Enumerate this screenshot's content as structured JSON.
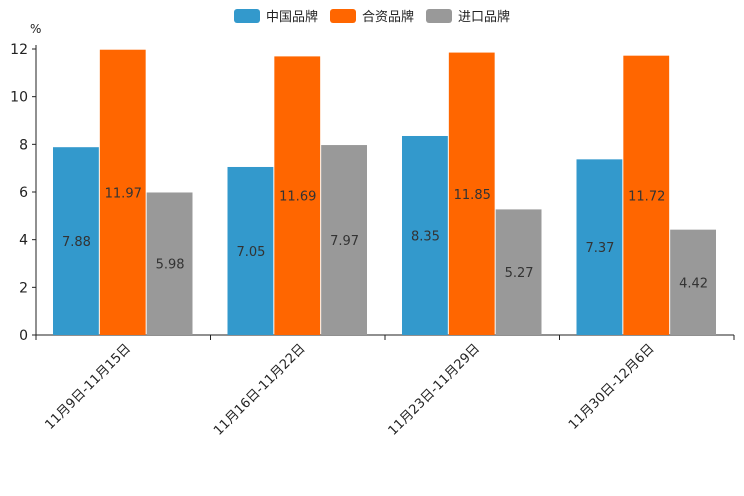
{
  "chart_data": {
    "type": "bar",
    "title": "",
    "xlabel": "",
    "ylabel": "%",
    "ylim": [
      0,
      12
    ],
    "yticks": [
      0,
      2,
      4,
      6,
      8,
      10,
      12
    ],
    "categories": [
      "11月9日-11月15日",
      "11月16日-11月22日",
      "11月23日-11月29日",
      "11月30日-12月6日"
    ],
    "series": [
      {
        "name": "中国品牌",
        "color": "#3399cc",
        "values": [
          7.88,
          7.05,
          8.35,
          7.37
        ],
        "labels": [
          "7.88",
          "7.05",
          "8.35",
          "7.37"
        ]
      },
      {
        "name": "合资品牌",
        "color": "#ff6600",
        "values": [
          11.97,
          11.69,
          11.85,
          11.72
        ],
        "labels": [
          "11.97",
          "11.69",
          "11.85",
          "11.72"
        ]
      },
      {
        "name": "进口品牌",
        "color": "#999999",
        "values": [
          5.98,
          7.97,
          5.27,
          4.42
        ],
        "labels": [
          "5.98",
          "7.97",
          "5.27",
          "4.42"
        ]
      }
    ],
    "legend": "top-center",
    "grid": false
  }
}
